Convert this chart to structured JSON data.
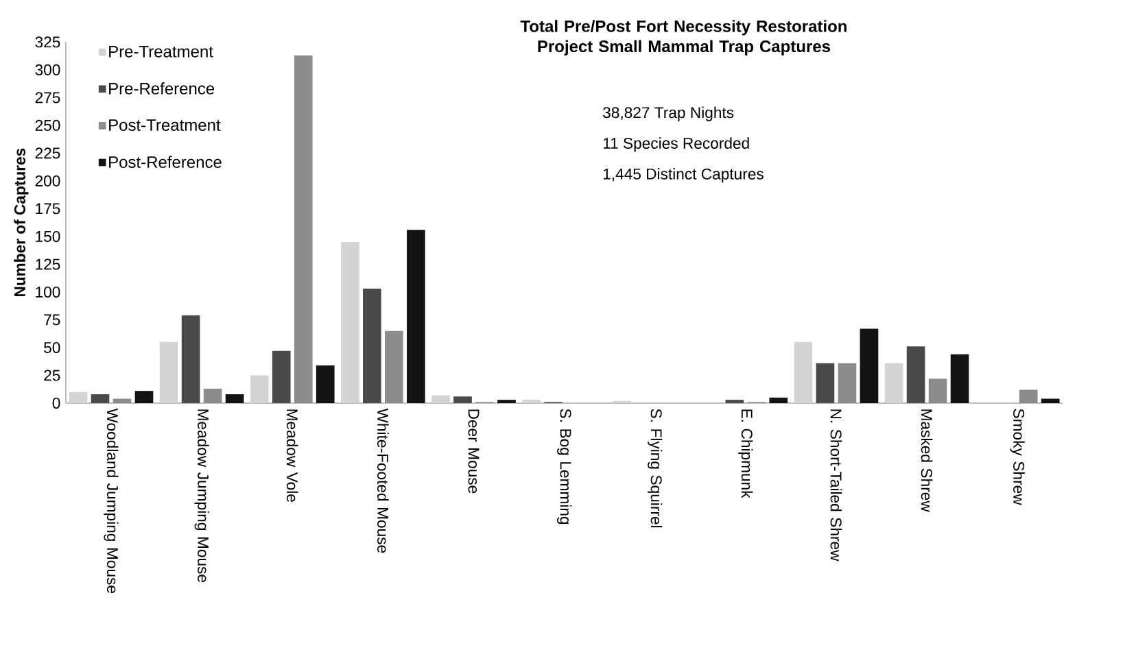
{
  "chart_data": {
    "type": "bar",
    "title": "Total  Pre/Post Fort Necessity Restoration Project Small Mammal Trap Captures",
    "ylabel": "Number of Captures",
    "annotations": [
      "38,827 Trap Nights",
      "11 Species Recorded",
      "1,445 Distinct Captures"
    ],
    "categories": [
      "Woodland Jumping Mouse",
      "Meadow Jumping Mouse",
      "Meadow Vole",
      "White-Footed Mouse",
      "Deer Mouse",
      "S. Bog Lemming",
      "S. Flying Squirrel",
      "E. Chipmunk",
      "N. Short-Tailed Shrew",
      "Masked Shrew",
      "Smoky Shrew"
    ],
    "series": [
      {
        "name": "Pre-Treatment",
        "color": "#d4d4d4",
        "values": [
          10,
          55,
          25,
          145,
          7,
          3,
          2,
          0,
          55,
          36,
          0
        ]
      },
      {
        "name": "Pre-Reference",
        "color": "#4a4a4a",
        "values": [
          8,
          79,
          47,
          103,
          6,
          1,
          0,
          3,
          36,
          51,
          0
        ]
      },
      {
        "name": "Post-Treatment",
        "color": "#8c8c8c",
        "values": [
          4,
          13,
          313,
          65,
          1,
          0,
          0,
          1,
          36,
          22,
          12
        ]
      },
      {
        "name": "Post-Reference",
        "color": "#141414",
        "values": [
          11,
          8,
          34,
          156,
          3,
          0,
          0,
          5,
          67,
          44,
          4
        ]
      }
    ],
    "ylim": [
      0,
      325
    ],
    "yticks": [
      0,
      25,
      50,
      75,
      100,
      125,
      150,
      175,
      200,
      225,
      250,
      275,
      300,
      325
    ],
    "legend": "top left",
    "grid": false
  }
}
